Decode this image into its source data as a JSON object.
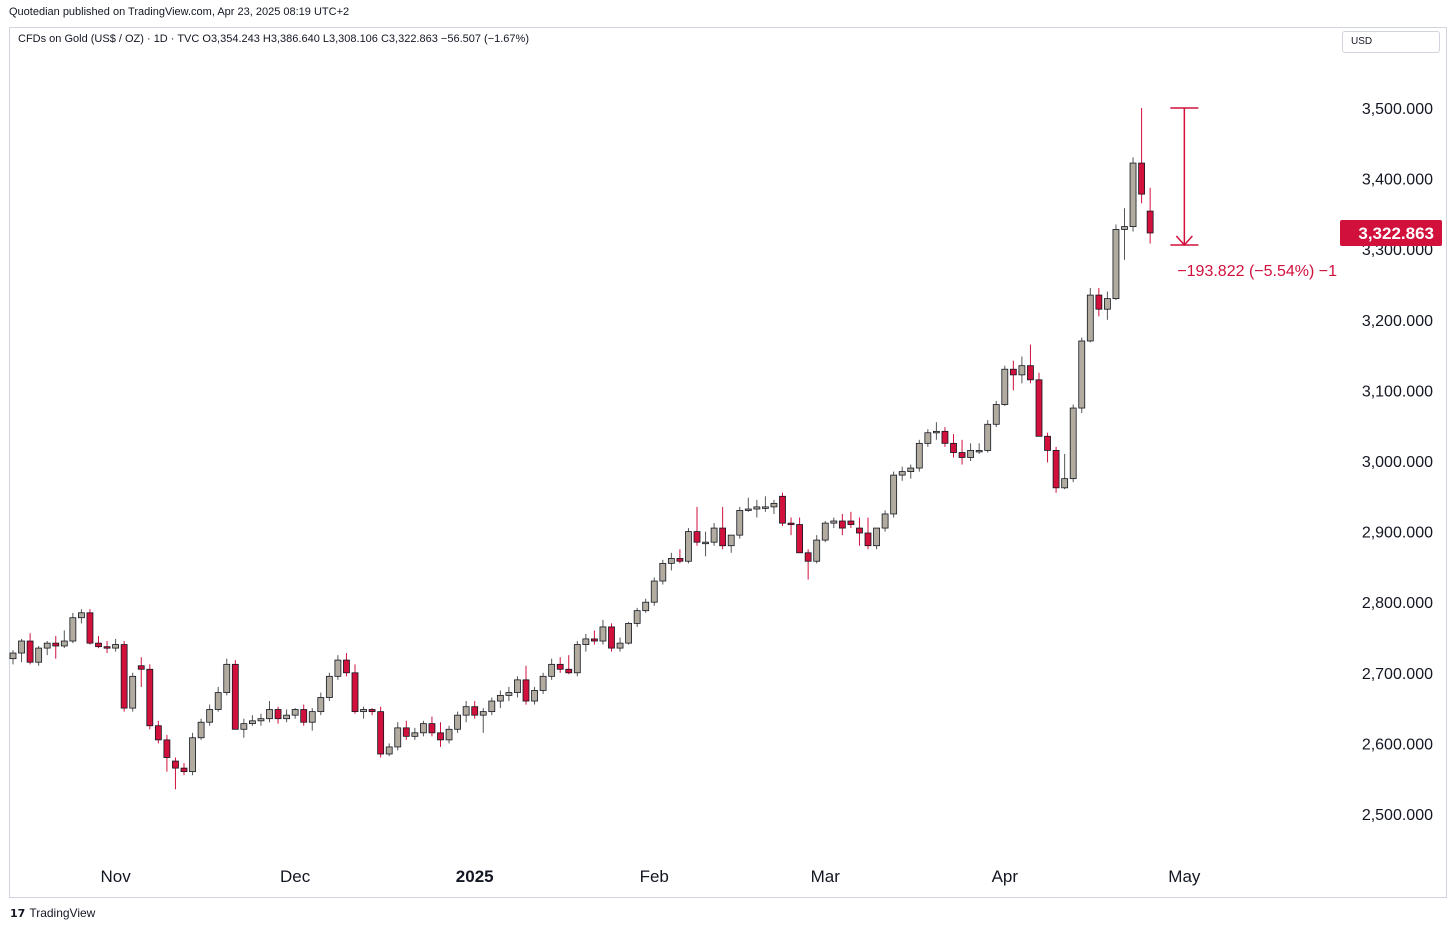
{
  "header": {
    "published": "Quotedian published on TradingView.com, Apr 23, 2025 08:19 UTC+2",
    "legend": "CFDs on Gold (US$ / OZ) · 1D · TVC  O3,354.243  H3,386.640  L3,308.106  C3,322.863  −56.507 (−1.67%)",
    "currency": "USD"
  },
  "footer": {
    "logo": "17",
    "brand": "TradingView"
  },
  "colors": {
    "up": "#b2ab9f",
    "down": "#d1103c",
    "border": "#131722",
    "last_price_bg": "#d1103c"
  },
  "chart_data": {
    "type": "candlestick",
    "title": "CFDs on Gold (US$ / OZ)",
    "interval": "1D",
    "source": "TVC",
    "ylim": [
      2440,
      3560
    ],
    "y_ticks": [
      {
        "value": 2500,
        "label": "2,500.000"
      },
      {
        "value": 2600,
        "label": "2,600.000"
      },
      {
        "value": 2700,
        "label": "2,700.000"
      },
      {
        "value": 2800,
        "label": "2,800.000"
      },
      {
        "value": 2900,
        "label": "2,900.000"
      },
      {
        "value": 3000,
        "label": "3,000.000"
      },
      {
        "value": 3100,
        "label": "3,100.000"
      },
      {
        "value": 3200,
        "label": "3,200.000"
      },
      {
        "value": 3300,
        "label": "3,300.000"
      },
      {
        "value": 3400,
        "label": "3,400.000"
      },
      {
        "value": 3500,
        "label": "3,500.000"
      }
    ],
    "x_ticks": [
      {
        "index": 12,
        "label": "Nov",
        "bold": false
      },
      {
        "index": 33,
        "label": "Dec",
        "bold": false
      },
      {
        "index": 54,
        "label": "2025",
        "bold": true
      },
      {
        "index": 75,
        "label": "Feb",
        "bold": false
      },
      {
        "index": 95,
        "label": "Mar",
        "bold": false
      },
      {
        "index": 116,
        "label": "Apr",
        "bold": false
      },
      {
        "index": 137,
        "label": "May",
        "bold": false
      }
    ],
    "candles": [
      [
        2720,
        2732,
        2712,
        2728
      ],
      [
        2728,
        2748,
        2715,
        2745
      ],
      [
        2745,
        2756,
        2712,
        2715
      ],
      [
        2715,
        2738,
        2710,
        2735
      ],
      [
        2735,
        2745,
        2725,
        2742
      ],
      [
        2742,
        2752,
        2720,
        2738
      ],
      [
        2738,
        2760,
        2735,
        2745
      ],
      [
        2745,
        2785,
        2742,
        2778
      ],
      [
        2778,
        2790,
        2770,
        2785
      ],
      [
        2785,
        2790,
        2740,
        2742
      ],
      [
        2742,
        2752,
        2735,
        2737
      ],
      [
        2737,
        2745,
        2728,
        2735
      ],
      [
        2735,
        2748,
        2730,
        2740
      ],
      [
        2740,
        2745,
        2645,
        2650
      ],
      [
        2650,
        2700,
        2645,
        2695
      ],
      [
        2710,
        2722,
        2680,
        2705
      ],
      [
        2705,
        2712,
        2620,
        2625
      ],
      [
        2625,
        2632,
        2600,
        2605
      ],
      [
        2605,
        2612,
        2560,
        2580
      ],
      [
        2575,
        2580,
        2535,
        2565
      ],
      [
        2565,
        2572,
        2555,
        2560
      ],
      [
        2560,
        2615,
        2555,
        2608
      ],
      [
        2608,
        2635,
        2605,
        2630
      ],
      [
        2630,
        2655,
        2625,
        2648
      ],
      [
        2648,
        2680,
        2645,
        2672
      ],
      [
        2672,
        2720,
        2668,
        2712
      ],
      [
        2712,
        2718,
        2620,
        2620
      ],
      [
        2620,
        2635,
        2608,
        2628
      ],
      [
        2628,
        2640,
        2625,
        2632
      ],
      [
        2632,
        2642,
        2625,
        2635
      ],
      [
        2635,
        2660,
        2630,
        2648
      ],
      [
        2648,
        2652,
        2628,
        2635
      ],
      [
        2635,
        2648,
        2630,
        2640
      ],
      [
        2640,
        2650,
        2635,
        2648
      ],
      [
        2648,
        2655,
        2625,
        2630
      ],
      [
        2630,
        2650,
        2618,
        2645
      ],
      [
        2645,
        2672,
        2640,
        2665
      ],
      [
        2665,
        2700,
        2660,
        2695
      ],
      [
        2695,
        2725,
        2690,
        2718
      ],
      [
        2718,
        2728,
        2695,
        2700
      ],
      [
        2700,
        2712,
        2642,
        2645
      ],
      [
        2645,
        2652,
        2635,
        2648
      ],
      [
        2648,
        2650,
        2640,
        2645
      ],
      [
        2645,
        2652,
        2580,
        2585
      ],
      [
        2585,
        2600,
        2582,
        2595
      ],
      [
        2595,
        2630,
        2590,
        2622
      ],
      [
        2622,
        2632,
        2605,
        2610
      ],
      [
        2610,
        2622,
        2605,
        2615
      ],
      [
        2615,
        2632,
        2610,
        2628
      ],
      [
        2628,
        2638,
        2610,
        2615
      ],
      [
        2615,
        2630,
        2595,
        2605
      ],
      [
        2605,
        2625,
        2600,
        2620
      ],
      [
        2620,
        2645,
        2615,
        2640
      ],
      [
        2640,
        2660,
        2630,
        2652
      ],
      [
        2652,
        2660,
        2635,
        2640
      ],
      [
        2640,
        2650,
        2615,
        2645
      ],
      [
        2645,
        2665,
        2640,
        2660
      ],
      [
        2660,
        2675,
        2650,
        2668
      ],
      [
        2668,
        2680,
        2660,
        2672
      ],
      [
        2672,
        2695,
        2665,
        2690
      ],
      [
        2690,
        2710,
        2655,
        2660
      ],
      [
        2660,
        2680,
        2655,
        2675
      ],
      [
        2675,
        2700,
        2670,
        2695
      ],
      [
        2695,
        2720,
        2690,
        2712
      ],
      [
        2712,
        2722,
        2700,
        2705
      ],
      [
        2705,
        2725,
        2698,
        2700
      ],
      [
        2700,
        2745,
        2695,
        2740
      ],
      [
        2740,
        2755,
        2730,
        2748
      ],
      [
        2748,
        2760,
        2740,
        2745
      ],
      [
        2745,
        2775,
        2740,
        2765
      ],
      [
        2765,
        2770,
        2730,
        2735
      ],
      [
        2735,
        2750,
        2730,
        2742
      ],
      [
        2742,
        2772,
        2740,
        2770
      ],
      [
        2770,
        2792,
        2765,
        2788
      ],
      [
        2788,
        2805,
        2785,
        2800
      ],
      [
        2800,
        2835,
        2795,
        2830
      ],
      [
        2830,
        2860,
        2825,
        2855
      ],
      [
        2855,
        2870,
        2845,
        2862
      ],
      [
        2862,
        2875,
        2855,
        2858
      ],
      [
        2858,
        2905,
        2855,
        2900
      ],
      [
        2900,
        2935,
        2880,
        2885
      ],
      [
        2885,
        2900,
        2865,
        2885
      ],
      [
        2885,
        2912,
        2880,
        2905
      ],
      [
        2905,
        2935,
        2875,
        2880
      ],
      [
        2880,
        2895,
        2870,
        2895
      ],
      [
        2895,
        2935,
        2890,
        2930
      ],
      [
        2930,
        2948,
        2928,
        2932
      ],
      [
        2932,
        2945,
        2920,
        2935
      ],
      [
        2935,
        2950,
        2928,
        2935
      ],
      [
        2935,
        2945,
        2925,
        2940
      ],
      [
        2950,
        2955,
        2908,
        2912
      ],
      [
        2912,
        2920,
        2895,
        2910
      ],
      [
        2910,
        2920,
        2870,
        2870
      ],
      [
        2870,
        2875,
        2832,
        2858
      ],
      [
        2858,
        2895,
        2855,
        2888
      ],
      [
        2888,
        2915,
        2885,
        2912
      ],
      [
        2912,
        2920,
        2905,
        2915
      ],
      [
        2915,
        2925,
        2895,
        2905
      ],
      [
        2915,
        2928,
        2905,
        2910
      ],
      [
        2905,
        2920,
        2880,
        2898
      ],
      [
        2898,
        2920,
        2875,
        2880
      ],
      [
        2880,
        2905,
        2875,
        2905
      ],
      [
        2905,
        2930,
        2900,
        2925
      ],
      [
        2925,
        2985,
        2920,
        2980
      ],
      [
        2980,
        2992,
        2972,
        2985
      ],
      [
        2985,
        2995,
        2975,
        2990
      ],
      [
        2990,
        3030,
        2985,
        3025
      ],
      [
        3025,
        3045,
        3020,
        3040
      ],
      [
        3040,
        3055,
        3030,
        3042
      ],
      [
        3042,
        3048,
        3020,
        3025
      ],
      [
        3025,
        3038,
        3005,
        3012
      ],
      [
        3012,
        3030,
        2995,
        3005
      ],
      [
        3005,
        3025,
        3000,
        3015
      ],
      [
        3015,
        3025,
        3010,
        3015
      ],
      [
        3015,
        3058,
        3012,
        3052
      ],
      [
        3052,
        3085,
        3048,
        3080
      ],
      [
        3080,
        3135,
        3078,
        3130
      ],
      [
        3130,
        3142,
        3100,
        3122
      ],
      [
        3122,
        3148,
        3110,
        3135
      ],
      [
        3135,
        3165,
        3110,
        3115
      ],
      [
        3115,
        3125,
        3035,
        3035
      ],
      [
        3035,
        3040,
        2998,
        3015
      ],
      [
        3015,
        3020,
        2955,
        2962
      ],
      [
        2962,
        3010,
        2960,
        2975
      ],
      [
        2975,
        3080,
        2970,
        3075
      ],
      [
        3075,
        3175,
        3068,
        3170
      ],
      [
        3170,
        3245,
        3168,
        3235
      ],
      [
        3235,
        3245,
        3205,
        3215
      ],
      [
        3215,
        3240,
        3200,
        3230
      ],
      [
        3230,
        3335,
        3228,
        3328
      ],
      [
        3328,
        3358,
        3285,
        3332
      ],
      [
        3332,
        3430,
        3325,
        3422
      ],
      [
        3422,
        3500,
        3365,
        3378
      ],
      [
        3354,
        3387,
        3308,
        3323
      ]
    ],
    "x_last_index": 144,
    "last_price": 3322.863,
    "last_price_label": "3,322.863",
    "measure_annotation": {
      "label": "−193.822 (−5.54%) −1",
      "from_value": 3500,
      "to_value": 3306,
      "start_index": 136.5,
      "end_index": 137
    }
  }
}
